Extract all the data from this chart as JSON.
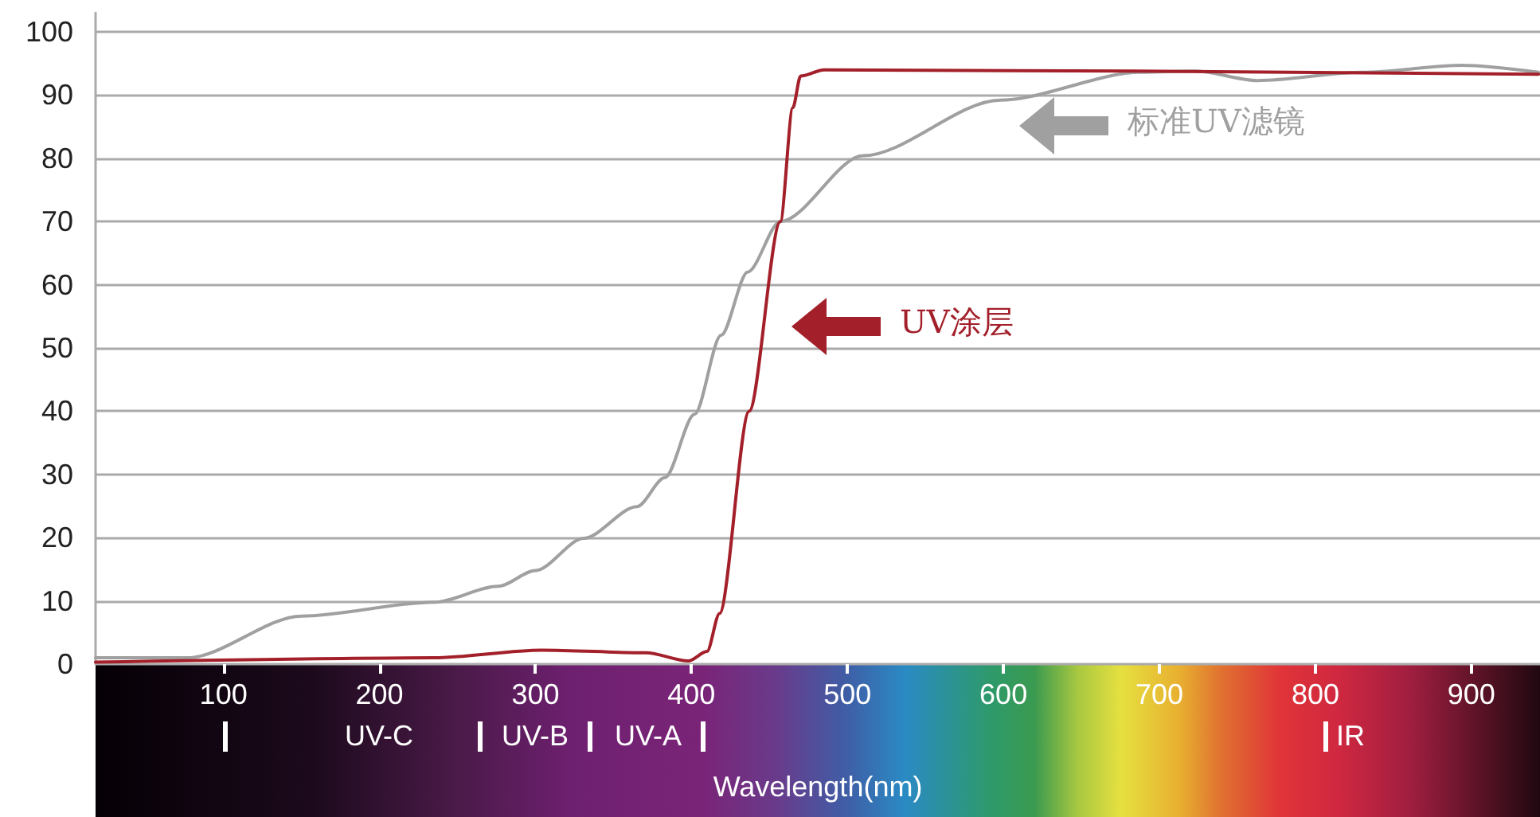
{
  "chart_data": {
    "type": "line",
    "xlabel": "Wavelength(nm)",
    "xlim": [
      18,
      944
    ],
    "xticks": [
      100,
      200,
      300,
      400,
      500,
      600,
      700,
      800,
      900
    ],
    "ylim": [
      0,
      103
    ],
    "yticks": [
      0,
      10,
      20,
      30,
      40,
      50,
      60,
      70,
      80,
      90,
      100
    ],
    "grid": "y",
    "line_style": "solid",
    "series": [
      {
        "color": "#a0a0a0",
        "x": [
          18,
          77,
          150,
          235,
          276,
          300,
          331,
          365,
          383,
          402,
          419,
          436,
          457,
          510,
          598,
          688,
          723,
          763,
          830,
          894,
          943
        ],
        "values": [
          1,
          1,
          7.6,
          9.8,
          12.3,
          14.8,
          19.9,
          24.9,
          29.5,
          39.5,
          52,
          62,
          70,
          80.4,
          89.2,
          93.6,
          93.8,
          92.3,
          93.6,
          94.7,
          93.6
        ]
      },
      {
        "color": "#a3202a",
        "x": [
          18,
          235,
          304,
          371,
          398,
          410,
          418,
          437,
          457,
          465,
          470,
          485,
          943
        ],
        "values": [
          0.3,
          1,
          2.2,
          1.8,
          0.5,
          2,
          8,
          40,
          70,
          88,
          93,
          94,
          93.3
        ]
      }
    ],
    "annotations": [
      "标准UV滤镜",
      "UV涂层",
      "UV-C",
      "UV-B",
      "UV-A",
      "IR"
    ]
  }
}
